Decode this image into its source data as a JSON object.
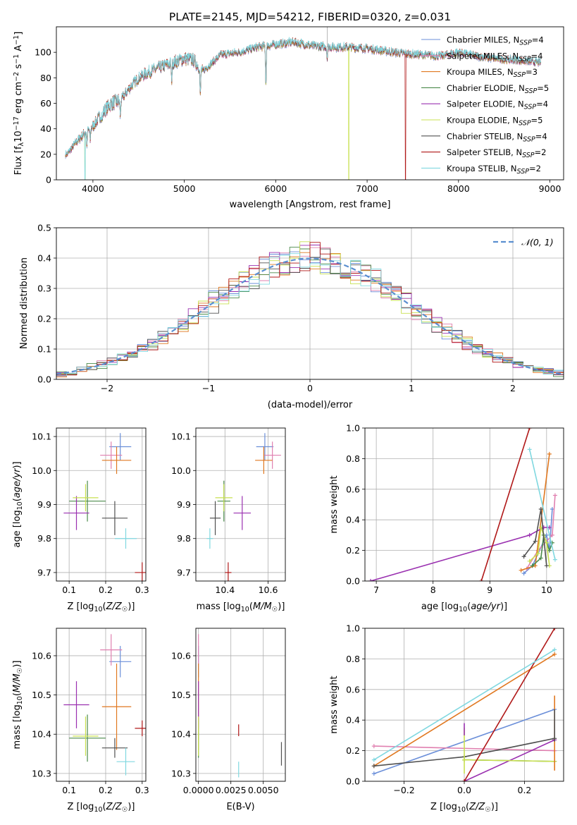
{
  "figure_title": "PLATE=2145, MJD=54212, FIBERID=0320, z=0.031",
  "model_colors": {
    "Chabrier MILES": "#6b8fd9",
    "Salpeter MILES": "#e080b0",
    "Kroupa MILES": "#e07820",
    "Chabrier ELODIE": "#4a8a4a",
    "Salpeter ELODIE": "#9a30b0",
    "Kroupa ELODIE": "#c8e050",
    "Chabrier STELIB": "#505050",
    "Salpeter STELIB": "#b01818",
    "Kroupa STELIB": "#80d8e0"
  },
  "chart_data": [
    {
      "id": "spectrum",
      "type": "line",
      "title": "",
      "xlabel": "wavelength [Angstrom, rest frame]",
      "ylabel": "Flux [f_λ10^-17 erg cm^-2 s^-1 A^-1]",
      "xlim": [
        3600,
        9150
      ],
      "ylim": [
        0,
        120
      ],
      "xticks": [
        4000,
        5000,
        6000,
        7000,
        8000,
        9000
      ],
      "yticks": [
        0,
        20,
        40,
        60,
        80,
        100
      ],
      "grid": false,
      "legend_position": "top-right",
      "x_range_observed": [
        3700,
        8900
      ],
      "spectrum_anchors": {
        "x": [
          3720,
          3800,
          3900,
          4000,
          4100,
          4200,
          4300,
          4400,
          4500,
          4600,
          4800,
          5000,
          5100,
          5200,
          5400,
          5600,
          5800,
          6000,
          6200,
          6400,
          6600,
          6800,
          7000,
          7200,
          7400,
          7600,
          7800,
          8000,
          8200,
          8400,
          8600,
          8900
        ],
        "y": [
          20,
          28,
          36,
          42,
          52,
          60,
          62,
          72,
          80,
          84,
          90,
          95,
          94,
          85,
          98,
          100,
          104,
          106,
          108,
          105,
          104,
          104,
          103,
          101,
          99,
          98,
          97,
          100,
          97,
          95,
          94,
          92
        ]
      },
      "series": [
        {
          "name": "Chabrier MILES, N_SSP=4",
          "n_ssp": 4
        },
        {
          "name": "Salpeter MILES, N_SSP=4",
          "n_ssp": 4
        },
        {
          "name": "Kroupa MILES, N_SSP=3",
          "n_ssp": 3
        },
        {
          "name": "Chabrier ELODIE, N_SSP=5",
          "n_ssp": 5
        },
        {
          "name": "Salpeter ELODIE, N_SSP=4",
          "n_ssp": 4
        },
        {
          "name": "Kroupa ELODIE, N_SSP=5",
          "n_ssp": 5
        },
        {
          "name": "Chabrier STELIB, N_SSP=4",
          "n_ssp": 4
        },
        {
          "name": "Salpeter STELIB, N_SSP=2",
          "n_ssp": 2
        },
        {
          "name": "Kroupa STELIB, N_SSP=2",
          "n_ssp": 2
        }
      ]
    },
    {
      "id": "residuals",
      "type": "bar",
      "title": "",
      "xlabel": "(data-model)/error",
      "ylabel": "Normed distribution",
      "xlim": [
        -2.5,
        2.5
      ],
      "ylim": [
        0,
        0.5
      ],
      "xticks": [
        -2,
        -1,
        0,
        1,
        2
      ],
      "yticks": [
        0.0,
        0.1,
        0.2,
        0.3,
        0.4,
        0.5
      ],
      "grid": true,
      "legend_position": "top-right",
      "legend": "𝒩(0, 1)",
      "gaussian": {
        "mean": 0,
        "sigma": 1,
        "color": "#5b8fd0"
      },
      "bins": {
        "start": -2.5,
        "width": 0.1,
        "count": 50
      }
    },
    {
      "id": "age-vs-Z",
      "type": "scatter",
      "xlabel": "Z [log10(Z/Z☉)]",
      "ylabel": "age  [log10(age/yr)]",
      "xlim": [
        0.065,
        0.31
      ],
      "ylim": [
        9.675,
        10.125
      ],
      "xticks": [
        0.1,
        0.2,
        0.3
      ],
      "yticks": [
        9.7,
        9.8,
        9.9,
        10.0,
        10.1
      ],
      "grid": true,
      "points": [
        {
          "model": "Chabrier MILES",
          "x": 0.24,
          "y": 10.07,
          "xerr": 0.03,
          "yerr": 0.04
        },
        {
          "model": "Salpeter MILES",
          "x": 0.215,
          "y": 10.045,
          "xerr": 0.03,
          "yerr": 0.04
        },
        {
          "model": "Kroupa MILES",
          "x": 0.23,
          "y": 10.03,
          "xerr": 0.04,
          "yerr": 0.04
        },
        {
          "model": "Chabrier ELODIE",
          "x": 0.15,
          "y": 9.91,
          "xerr": 0.05,
          "yerr": 0.06
        },
        {
          "model": "Salpeter ELODIE",
          "x": 0.12,
          "y": 9.875,
          "xerr": 0.035,
          "yerr": 0.05
        },
        {
          "model": "Kroupa ELODIE",
          "x": 0.145,
          "y": 9.92,
          "xerr": 0.035,
          "yerr": 0.04
        },
        {
          "model": "Chabrier STELIB",
          "x": 0.225,
          "y": 9.86,
          "xerr": 0.035,
          "yerr": 0.05
        },
        {
          "model": "Salpeter STELIB",
          "x": 0.3,
          "y": 9.7,
          "xerr": 0.02,
          "yerr": 0.03
        },
        {
          "model": "Kroupa STELIB",
          "x": 0.255,
          "y": 9.8,
          "xerr": 0.03,
          "yerr": 0.03
        }
      ]
    },
    {
      "id": "age-vs-mass",
      "type": "scatter",
      "xlabel": "mass [log10(M/M☉)]",
      "ylabel": "",
      "xlim": [
        10.265,
        10.68
      ],
      "ylim": [
        9.675,
        10.125
      ],
      "xticks": [
        10.4,
        10.6
      ],
      "yticks": [
        9.7,
        9.8,
        9.9,
        10.0,
        10.1
      ],
      "grid": true,
      "points": [
        {
          "model": "Chabrier MILES",
          "x": 10.585,
          "y": 10.07,
          "xerr": 0.04,
          "yerr": 0.04
        },
        {
          "model": "Salpeter MILES",
          "x": 10.62,
          "y": 10.045,
          "xerr": 0.04,
          "yerr": 0.04
        },
        {
          "model": "Kroupa MILES",
          "x": 10.58,
          "y": 10.03,
          "xerr": 0.04,
          "yerr": 0.04
        },
        {
          "model": "Chabrier ELODIE",
          "x": 10.395,
          "y": 9.91,
          "xerr": 0.03,
          "yerr": 0.06
        },
        {
          "model": "Salpeter ELODIE",
          "x": 10.48,
          "y": 9.875,
          "xerr": 0.04,
          "yerr": 0.05
        },
        {
          "model": "Kroupa ELODIE",
          "x": 10.395,
          "y": 9.92,
          "xerr": 0.04,
          "yerr": 0.04
        },
        {
          "model": "Chabrier STELIB",
          "x": 10.355,
          "y": 9.86,
          "xerr": 0.025,
          "yerr": 0.05
        },
        {
          "model": "Salpeter STELIB",
          "x": 10.415,
          "y": 9.7,
          "xerr": 0.015,
          "yerr": 0.03
        },
        {
          "model": "Kroupa STELIB",
          "x": 10.33,
          "y": 9.8,
          "xerr": 0.015,
          "yerr": 0.03
        }
      ]
    },
    {
      "id": "mass-vs-Z",
      "type": "scatter",
      "xlabel": "Z [log10(Z/Z☉)]",
      "ylabel": "mass [log10(M/M☉)]",
      "xlim": [
        0.065,
        0.31
      ],
      "ylim": [
        10.28,
        10.67
      ],
      "xticks": [
        0.1,
        0.2,
        0.3
      ],
      "yticks": [
        10.3,
        10.4,
        10.5,
        10.6
      ],
      "grid": true,
      "points": [
        {
          "model": "Chabrier MILES",
          "x": 0.24,
          "y": 10.585,
          "xerr": 0.03,
          "yerr": 0.04
        },
        {
          "model": "Salpeter MILES",
          "x": 0.215,
          "y": 10.615,
          "xerr": 0.03,
          "yerr": 0.04
        },
        {
          "model": "Kroupa MILES",
          "x": 0.23,
          "y": 10.47,
          "xerr": 0.04,
          "yerr": 0.11
        },
        {
          "model": "Chabrier ELODIE",
          "x": 0.15,
          "y": 10.39,
          "xerr": 0.05,
          "yerr": 0.06
        },
        {
          "model": "Salpeter ELODIE",
          "x": 0.12,
          "y": 10.475,
          "xerr": 0.035,
          "yerr": 0.06
        },
        {
          "model": "Kroupa ELODIE",
          "x": 0.145,
          "y": 10.395,
          "xerr": 0.035,
          "yerr": 0.05
        },
        {
          "model": "Chabrier STELIB",
          "x": 0.225,
          "y": 10.365,
          "xerr": 0.035,
          "yerr": 0.025
        },
        {
          "model": "Salpeter STELIB",
          "x": 0.3,
          "y": 10.415,
          "xerr": 0.02,
          "yerr": 0.02
        },
        {
          "model": "Kroupa STELIB",
          "x": 0.255,
          "y": 10.33,
          "xerr": 0.025,
          "yerr": 0.035
        }
      ]
    },
    {
      "id": "mass-vs-ebv",
      "type": "scatter",
      "xlabel": "E(B-V)",
      "ylabel": "",
      "xlim": [
        -0.0002,
        0.0067
      ],
      "ylim": [
        10.28,
        10.67
      ],
      "xticks": [
        0.0,
        0.0025,
        0.005
      ],
      "xticklabels": [
        "0.0000",
        "0.0025",
        "0.0050"
      ],
      "yticks": [
        10.3,
        10.4,
        10.5,
        10.6
      ],
      "grid": true,
      "points": [
        {
          "model": "Chabrier MILES",
          "x": 0.0,
          "y": 10.585,
          "yerr": 0.04
        },
        {
          "model": "Salpeter MILES",
          "x": 0.0,
          "y": 10.615,
          "yerr": 0.04
        },
        {
          "model": "Kroupa MILES",
          "x": 0.0,
          "y": 10.47,
          "yerr": 0.11
        },
        {
          "model": "Chabrier ELODIE",
          "x": 0.0,
          "y": 10.39,
          "yerr": 0.05
        },
        {
          "model": "Salpeter ELODIE",
          "x": 0.0,
          "y": 10.475,
          "yerr": 0.06
        },
        {
          "model": "Kroupa ELODIE",
          "x": 0.0,
          "y": 10.395,
          "yerr": 0.05
        },
        {
          "model": "Chabrier STELIB",
          "x": 0.0064,
          "y": 10.35,
          "yerr": 0.03
        },
        {
          "model": "Salpeter STELIB",
          "x": 0.0031,
          "y": 10.41,
          "yerr": 0.015
        },
        {
          "model": "Kroupa STELIB",
          "x": 0.0031,
          "y": 10.31,
          "yerr": 0.02
        }
      ]
    },
    {
      "id": "weight-vs-age",
      "type": "line",
      "xlabel": "age  [log10(age/yr)]",
      "ylabel": "mass weight",
      "xlim": [
        6.8,
        10.3
      ],
      "ylim": [
        0,
        1
      ],
      "xticks": [
        7,
        8,
        9,
        10
      ],
      "yticks": [
        0.0,
        0.2,
        0.4,
        0.6,
        0.8,
        1.0
      ],
      "grid": true,
      "series": [
        {
          "model": "Chabrier MILES",
          "x": [
            9.6,
            9.75,
            10.0,
            10.05,
            10.1
          ],
          "y": [
            0.05,
            0.1,
            0.3,
            0.2,
            0.47
          ]
        },
        {
          "model": "Salpeter MILES",
          "x": [
            9.65,
            9.85,
            10.1,
            10.15
          ],
          "y": [
            0.08,
            0.2,
            0.3,
            0.56
          ]
        },
        {
          "model": "Kroupa MILES",
          "x": [
            9.55,
            9.8,
            10.05
          ],
          "y": [
            0.07,
            0.1,
            0.83
          ]
        },
        {
          "model": "Chabrier ELODIE",
          "x": [
            9.75,
            9.9,
            9.95,
            10.05,
            10.1
          ],
          "y": [
            0.1,
            0.15,
            0.3,
            0.2,
            0.25
          ]
        },
        {
          "model": "Salpeter ELODIE",
          "x": [
            6.9,
            9.7,
            9.95,
            10.05
          ],
          "y": [
            0.0,
            0.3,
            0.35,
            0.35
          ]
        },
        {
          "model": "Kroupa ELODIE",
          "x": [
            9.7,
            9.85,
            9.9,
            10.0,
            10.05
          ],
          "y": [
            0.13,
            0.18,
            0.35,
            0.25,
            0.1
          ]
        },
        {
          "model": "Chabrier STELIB",
          "x": [
            9.6,
            9.8,
            9.9,
            10.0
          ],
          "y": [
            0.16,
            0.26,
            0.47,
            0.1
          ]
        },
        {
          "model": "Salpeter STELIB",
          "x": [
            8.85,
            9.7
          ],
          "y": [
            0.0,
            1.0
          ]
        },
        {
          "model": "Kroupa STELIB",
          "x": [
            9.7,
            10.15
          ],
          "y": [
            0.86,
            0.14
          ]
        }
      ]
    },
    {
      "id": "weight-vs-Z",
      "type": "line",
      "xlabel": "Z [log10(Z/Z☉)]",
      "ylabel": "mass weight",
      "xlim": [
        -0.33,
        0.33
      ],
      "ylim": [
        0,
        1
      ],
      "xticks": [
        -0.2,
        0.0,
        0.2
      ],
      "yticks": [
        0.0,
        0.2,
        0.4,
        0.6,
        0.8,
        1.0
      ],
      "grid": true,
      "series": [
        {
          "model": "Chabrier MILES",
          "x": [
            -0.3,
            0.3
          ],
          "y": [
            0.05,
            0.47
          ]
        },
        {
          "model": "Salpeter MILES",
          "x": [
            -0.3,
            0.3
          ],
          "y": [
            0.23,
            0.2
          ]
        },
        {
          "model": "Kroupa MILES",
          "x": [
            -0.3,
            0.3
          ],
          "y": [
            0.1,
            0.83
          ]
        },
        {
          "model": "Chabrier ELODIE",
          "x": [
            0.0,
            0.3
          ],
          "y": [
            0.14,
            0.13
          ]
        },
        {
          "model": "Salpeter ELODIE",
          "x": [
            0.0,
            0.3
          ],
          "y": [
            0.0,
            0.27
          ]
        },
        {
          "model": "Kroupa ELODIE",
          "x": [
            0.0,
            0.3
          ],
          "y": [
            0.14,
            0.13
          ]
        },
        {
          "model": "Chabrier STELIB",
          "x": [
            -0.3,
            0.0,
            0.3
          ],
          "y": [
            0.1,
            0.16,
            0.28
          ]
        },
        {
          "model": "Salpeter STELIB",
          "x": [
            0.0,
            0.3
          ],
          "y": [
            0.0,
            1.0
          ]
        },
        {
          "model": "Kroupa STELIB",
          "x": [
            -0.3,
            0.3
          ],
          "y": [
            0.14,
            0.86
          ]
        }
      ],
      "vertical_markers": [
        {
          "model": "Kroupa ELODIE",
          "x": 0.0,
          "y": [
            0.05,
            0.35
          ]
        },
        {
          "model": "Salpeter ELODIE",
          "x": 0.0,
          "y": [
            0.3,
            0.38
          ]
        },
        {
          "model": "Kroupa MILES",
          "x": 0.3,
          "y": [
            0.07,
            0.56
          ]
        },
        {
          "model": "Chabrier STELIB",
          "x": 0.3,
          "y": [
            0.26,
            0.47
          ]
        }
      ]
    }
  ]
}
